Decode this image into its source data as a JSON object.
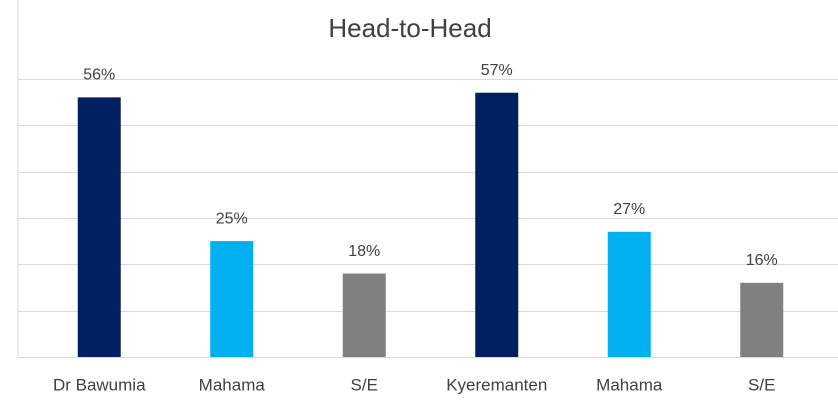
{
  "chart_data": {
    "type": "bar",
    "title": "Head-to-Head",
    "categories": [
      "Dr Bawumia",
      "Mahama",
      "S/E",
      "Kyeremanten",
      "Mahama",
      "S/E"
    ],
    "values": [
      56,
      25,
      18,
      57,
      27,
      16
    ],
    "value_labels": [
      "56%",
      "25%",
      "18%",
      "57%",
      "27%",
      "16%"
    ],
    "colors": [
      "#002060",
      "#00b0f0",
      "#808080",
      "#002060",
      "#00b0f0",
      "#808080"
    ],
    "ylim": [
      0,
      77
    ],
    "yticks": [
      0,
      10,
      20,
      30,
      40,
      50,
      60
    ],
    "grid": true
  }
}
